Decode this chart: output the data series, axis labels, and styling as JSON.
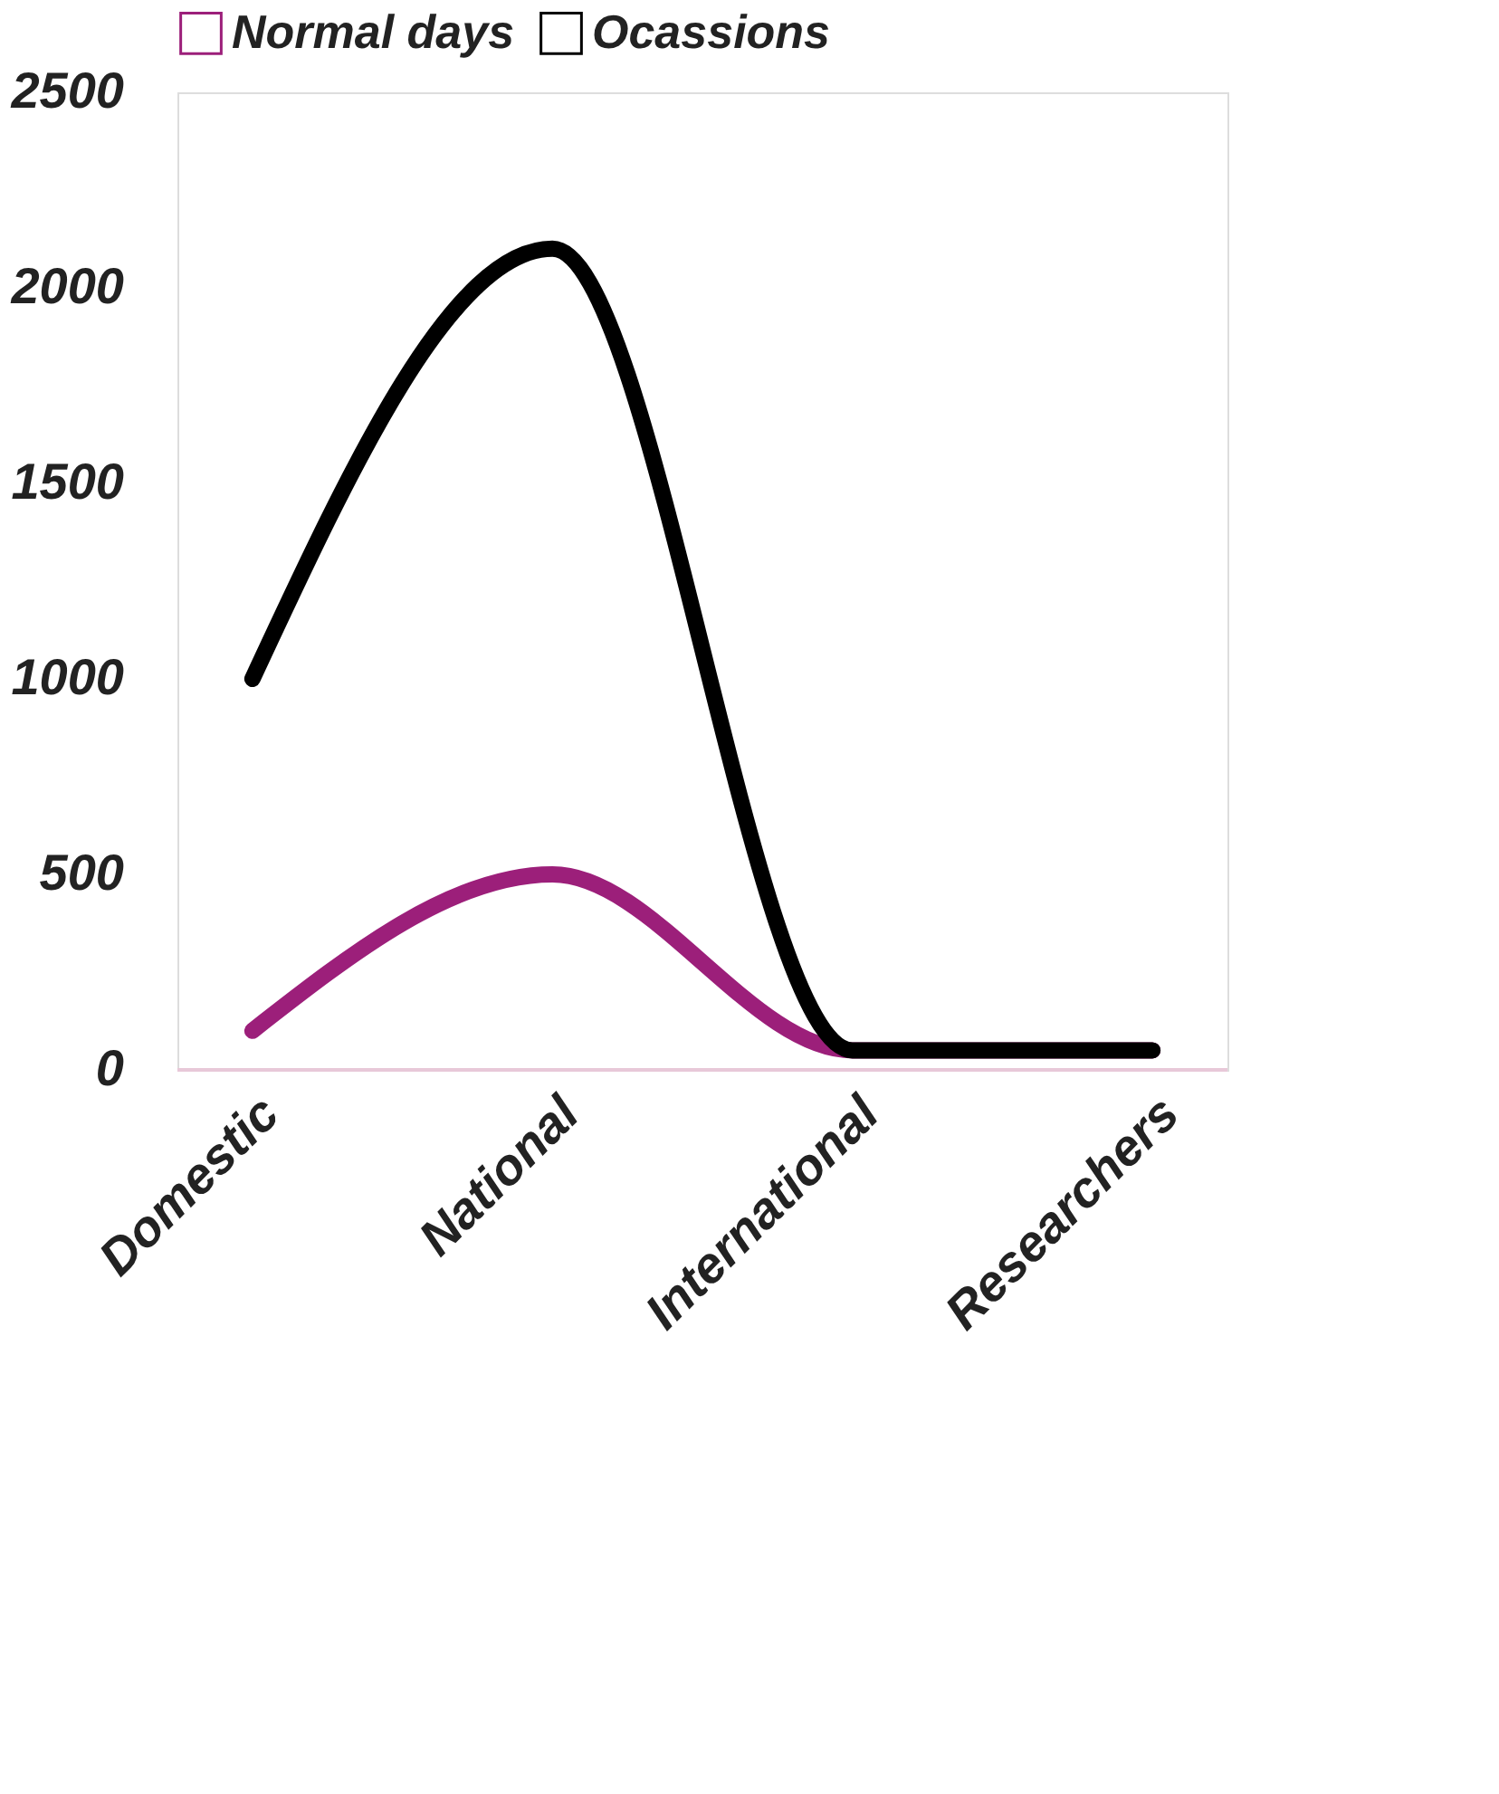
{
  "chart_data": {
    "type": "line",
    "categories": [
      "Domestic",
      "National",
      "International",
      "Researchers"
    ],
    "series": [
      {
        "name": "Normal days",
        "color": "#9c1f7a",
        "values": [
          100,
          500,
          50,
          50
        ]
      },
      {
        "name": "Ocassions",
        "color": "#000000",
        "values": [
          1000,
          2100,
          50,
          50
        ]
      }
    ],
    "ylim": [
      0,
      2500
    ],
    "yticks": [
      0,
      500,
      1000,
      1500,
      2000,
      2500
    ],
    "legend": "top",
    "line_style": "solid"
  }
}
